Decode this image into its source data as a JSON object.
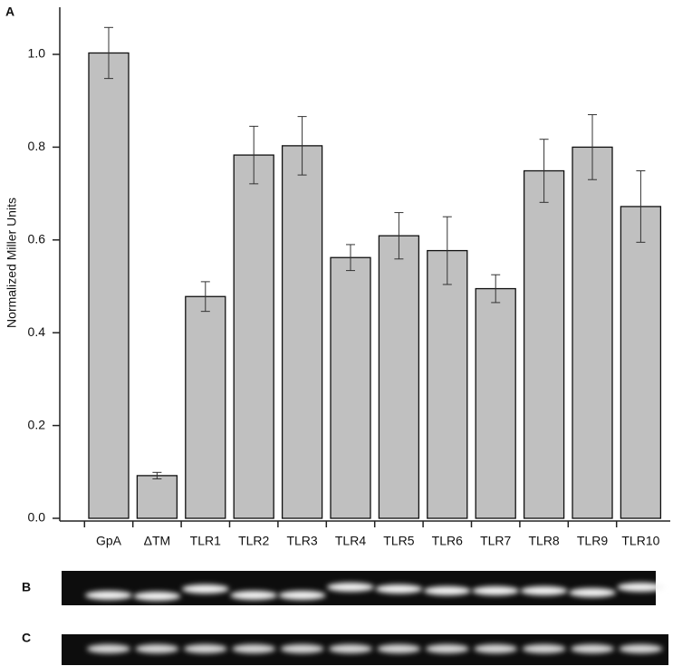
{
  "chart_data": {
    "type": "bar",
    "panel_labels": [
      "A",
      "B",
      "C"
    ],
    "ylabel": "Normalized Miller Units",
    "categories": [
      "GpA",
      "ΔTM",
      "TLR1",
      "TLR2",
      "TLR3",
      "TLR4",
      "TLR5",
      "TLR6",
      "TLR7",
      "TLR8",
      "TLR9",
      "TLR10"
    ],
    "values": [
      1.003,
      0.092,
      0.478,
      0.783,
      0.803,
      0.562,
      0.609,
      0.577,
      0.495,
      0.749,
      0.8,
      0.672
    ],
    "errors": [
      0.055,
      0.007,
      0.032,
      0.062,
      0.063,
      0.028,
      0.05,
      0.073,
      0.03,
      0.068,
      0.07,
      0.077
    ],
    "color": "#c0c0c0",
    "ylim": [
      0,
      1.1
    ],
    "yticks": [
      {
        "value": 0,
        "label": "0.0"
      },
      {
        "value": 0.2,
        "label": "0.2"
      },
      {
        "value": 0.4,
        "label": "0.4"
      },
      {
        "value": 0.6,
        "label": "0.6"
      },
      {
        "value": 0.8,
        "label": "0.8"
      },
      {
        "value": 1,
        "label": "1.0"
      }
    ],
    "grid": false
  }
}
